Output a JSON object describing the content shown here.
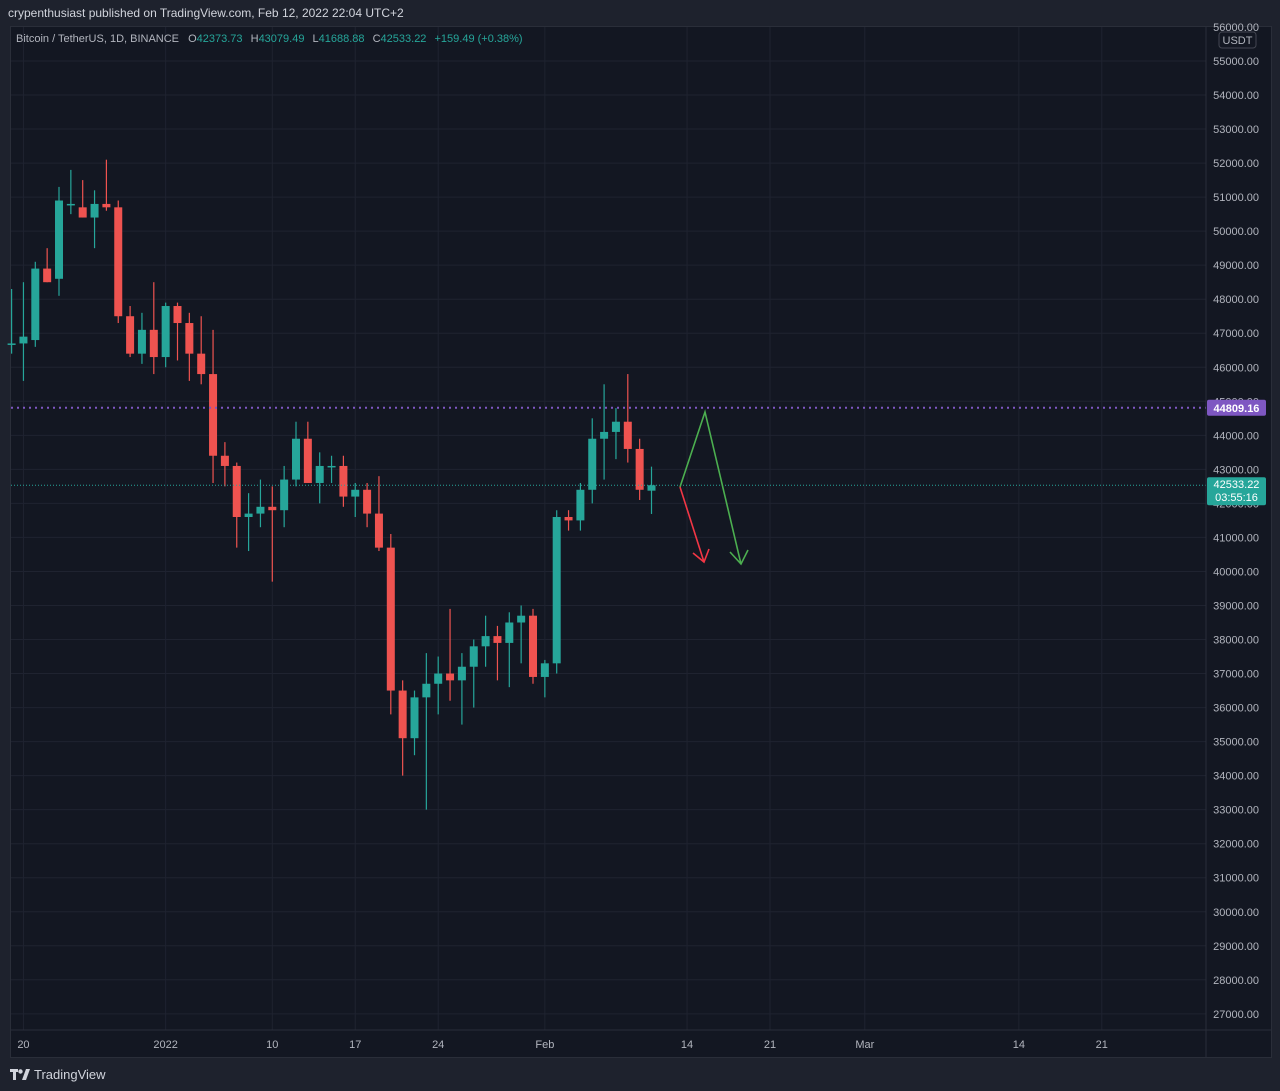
{
  "publisher": {
    "text": "crypenthusiast published on TradingView.com, Feb 12, 2022 22:04 UTC+2"
  },
  "legend": {
    "symbol": "Bitcoin / TetherUS, 1D, BINANCE",
    "open_label": "O",
    "open": "42373.73",
    "high_label": "H",
    "high": "43079.49",
    "low_label": "L",
    "low": "41688.88",
    "close_label": "C",
    "close": "42533.22",
    "change": "+159.49 (+0.38%)"
  },
  "axis": {
    "currency": "USDT",
    "y_ticks": [
      "56000.00",
      "55000.00",
      "54000.00",
      "53000.00",
      "52000.00",
      "51000.00",
      "50000.00",
      "49000.00",
      "48000.00",
      "47000.00",
      "46000.00",
      "45000.00",
      "44000.00",
      "43000.00",
      "42000.00",
      "41000.00",
      "40000.00",
      "39000.00",
      "38000.00",
      "37000.00",
      "36000.00",
      "35000.00",
      "34000.00",
      "33000.00",
      "32000.00",
      "31000.00",
      "30000.00",
      "29000.00",
      "28000.00",
      "27000.00"
    ],
    "x_ticks": [
      "20",
      "2022",
      "10",
      "17",
      "24",
      "Feb",
      "14",
      "21",
      "Mar",
      "14",
      "21"
    ]
  },
  "markers": {
    "horizontal_level": "44809.16",
    "last_price": "42533.22",
    "countdown": "03:55:16"
  },
  "colors": {
    "up": "#26a69a",
    "down": "#ef5350",
    "level": "#7e57c2",
    "background": "#131722"
  },
  "footer": {
    "brand": "TradingView"
  },
  "chart_data": {
    "type": "candlestick",
    "ylim": [
      26500,
      56300
    ],
    "start_date": "2021-12-19",
    "candles": [
      {
        "o": 46700,
        "h": 48300,
        "l": 46400,
        "c": 46700
      },
      {
        "o": 46700,
        "h": 48500,
        "l": 45600,
        "c": 46900
      },
      {
        "o": 46800,
        "h": 49100,
        "l": 46600,
        "c": 48900
      },
      {
        "o": 48900,
        "h": 49500,
        "l": 48500,
        "c": 48500
      },
      {
        "o": 48600,
        "h": 51300,
        "l": 48100,
        "c": 50900
      },
      {
        "o": 50800,
        "h": 51800,
        "l": 50500,
        "c": 50800
      },
      {
        "o": 50700,
        "h": 51500,
        "l": 50400,
        "c": 50400
      },
      {
        "o": 50400,
        "h": 51200,
        "l": 49500,
        "c": 50800
      },
      {
        "o": 50800,
        "h": 52100,
        "l": 50600,
        "c": 50700
      },
      {
        "o": 50700,
        "h": 50900,
        "l": 47300,
        "c": 47500
      },
      {
        "o": 47500,
        "h": 47800,
        "l": 46300,
        "c": 46400
      },
      {
        "o": 46400,
        "h": 47600,
        "l": 46100,
        "c": 47100
      },
      {
        "o": 47100,
        "h": 48500,
        "l": 45800,
        "c": 46300
      },
      {
        "o": 46300,
        "h": 47900,
        "l": 46000,
        "c": 47800
      },
      {
        "o": 47800,
        "h": 47900,
        "l": 46200,
        "c": 47300
      },
      {
        "o": 47300,
        "h": 47600,
        "l": 45600,
        "c": 46400
      },
      {
        "o": 46400,
        "h": 47500,
        "l": 45500,
        "c": 45800
      },
      {
        "o": 45800,
        "h": 47100,
        "l": 42600,
        "c": 43400
      },
      {
        "o": 43400,
        "h": 43800,
        "l": 42500,
        "c": 43100
      },
      {
        "o": 43100,
        "h": 43200,
        "l": 40700,
        "c": 41600
      },
      {
        "o": 41600,
        "h": 42300,
        "l": 40600,
        "c": 41700
      },
      {
        "o": 41700,
        "h": 42700,
        "l": 41300,
        "c": 41900
      },
      {
        "o": 41900,
        "h": 42500,
        "l": 39700,
        "c": 41800
      },
      {
        "o": 41800,
        "h": 43100,
        "l": 41300,
        "c": 42700
      },
      {
        "o": 42700,
        "h": 44400,
        "l": 42500,
        "c": 43900
      },
      {
        "o": 43900,
        "h": 44400,
        "l": 42600,
        "c": 42600
      },
      {
        "o": 42600,
        "h": 43500,
        "l": 42000,
        "c": 43100
      },
      {
        "o": 43100,
        "h": 43400,
        "l": 42600,
        "c": 43100
      },
      {
        "o": 43100,
        "h": 43400,
        "l": 41900,
        "c": 42200
      },
      {
        "o": 42200,
        "h": 42600,
        "l": 41600,
        "c": 42400
      },
      {
        "o": 42400,
        "h": 42600,
        "l": 41300,
        "c": 41700
      },
      {
        "o": 41700,
        "h": 42800,
        "l": 40600,
        "c": 40700
      },
      {
        "o": 40700,
        "h": 41100,
        "l": 35800,
        "c": 36500
      },
      {
        "o": 36500,
        "h": 36800,
        "l": 34000,
        "c": 35100
      },
      {
        "o": 35100,
        "h": 36500,
        "l": 34600,
        "c": 36300
      },
      {
        "o": 36300,
        "h": 37600,
        "l": 33000,
        "c": 36700
      },
      {
        "o": 36700,
        "h": 37500,
        "l": 35800,
        "c": 37000
      },
      {
        "o": 37000,
        "h": 38900,
        "l": 36200,
        "c": 36800
      },
      {
        "o": 36800,
        "h": 37600,
        "l": 35500,
        "c": 37200
      },
      {
        "o": 37200,
        "h": 38000,
        "l": 36000,
        "c": 37800
      },
      {
        "o": 37800,
        "h": 38700,
        "l": 37200,
        "c": 38100
      },
      {
        "o": 38100,
        "h": 38400,
        "l": 36800,
        "c": 37900
      },
      {
        "o": 37900,
        "h": 38800,
        "l": 36600,
        "c": 38500
      },
      {
        "o": 38500,
        "h": 39000,
        "l": 37300,
        "c": 38700
      },
      {
        "o": 38700,
        "h": 38900,
        "l": 36700,
        "c": 36900
      },
      {
        "o": 36900,
        "h": 37400,
        "l": 36300,
        "c": 37300
      },
      {
        "o": 37300,
        "h": 41800,
        "l": 37000,
        "c": 41600
      },
      {
        "o": 41600,
        "h": 41800,
        "l": 41200,
        "c": 41500
      },
      {
        "o": 41500,
        "h": 42600,
        "l": 41200,
        "c": 42400
      },
      {
        "o": 42400,
        "h": 44500,
        "l": 42000,
        "c": 43900
      },
      {
        "o": 43900,
        "h": 45500,
        "l": 42700,
        "c": 44100
      },
      {
        "o": 44100,
        "h": 44800,
        "l": 43300,
        "c": 44400
      },
      {
        "o": 44400,
        "h": 45800,
        "l": 43200,
        "c": 43600
      },
      {
        "o": 43600,
        "h": 43900,
        "l": 42100,
        "c": 42400
      },
      {
        "o": 42373.73,
        "h": 43079.49,
        "l": 41688.88,
        "c": 42533.22
      }
    ]
  }
}
